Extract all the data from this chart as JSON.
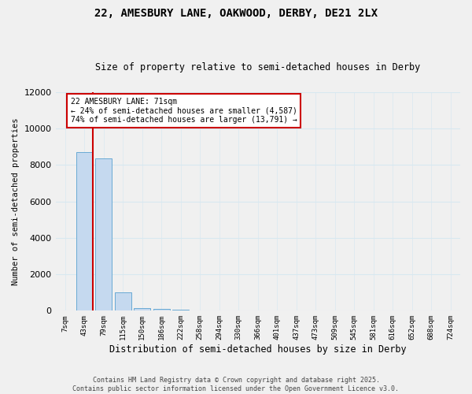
{
  "title_line1": "22, AMESBURY LANE, OAKWOOD, DERBY, DE21 2LX",
  "title_line2": "Size of property relative to semi-detached houses in Derby",
  "xlabel": "Distribution of semi-detached houses by size in Derby",
  "ylabel": "Number of semi-detached properties",
  "categories": [
    "7sqm",
    "43sqm",
    "79sqm",
    "115sqm",
    "150sqm",
    "186sqm",
    "222sqm",
    "258sqm",
    "294sqm",
    "330sqm",
    "366sqm",
    "401sqm",
    "437sqm",
    "473sqm",
    "509sqm",
    "545sqm",
    "581sqm",
    "616sqm",
    "652sqm",
    "688sqm",
    "724sqm"
  ],
  "values": [
    0,
    8700,
    8350,
    1000,
    160,
    80,
    45,
    25,
    15,
    10,
    8,
    6,
    5,
    4,
    3,
    3,
    2,
    2,
    1,
    1,
    1
  ],
  "bar_color": "#c5d9ef",
  "bar_edge_color": "#6aaad4",
  "annotation_box_color": "#cc0000",
  "annotation_line_color": "#cc0000",
  "pct_smaller": 24,
  "n_smaller": 4587,
  "pct_larger": 74,
  "n_larger": 13791,
  "annotation_label": "22 AMESBURY LANE: 71sqm",
  "ylim_max": 12000,
  "yticks": [
    0,
    2000,
    4000,
    6000,
    8000,
    10000,
    12000
  ],
  "bg_color": "#f0f0f0",
  "grid_color": "#d8e8f0",
  "footer_line1": "Contains HM Land Registry data © Crown copyright and database right 2025.",
  "footer_line2": "Contains public sector information licensed under the Open Government Licence v3.0."
}
